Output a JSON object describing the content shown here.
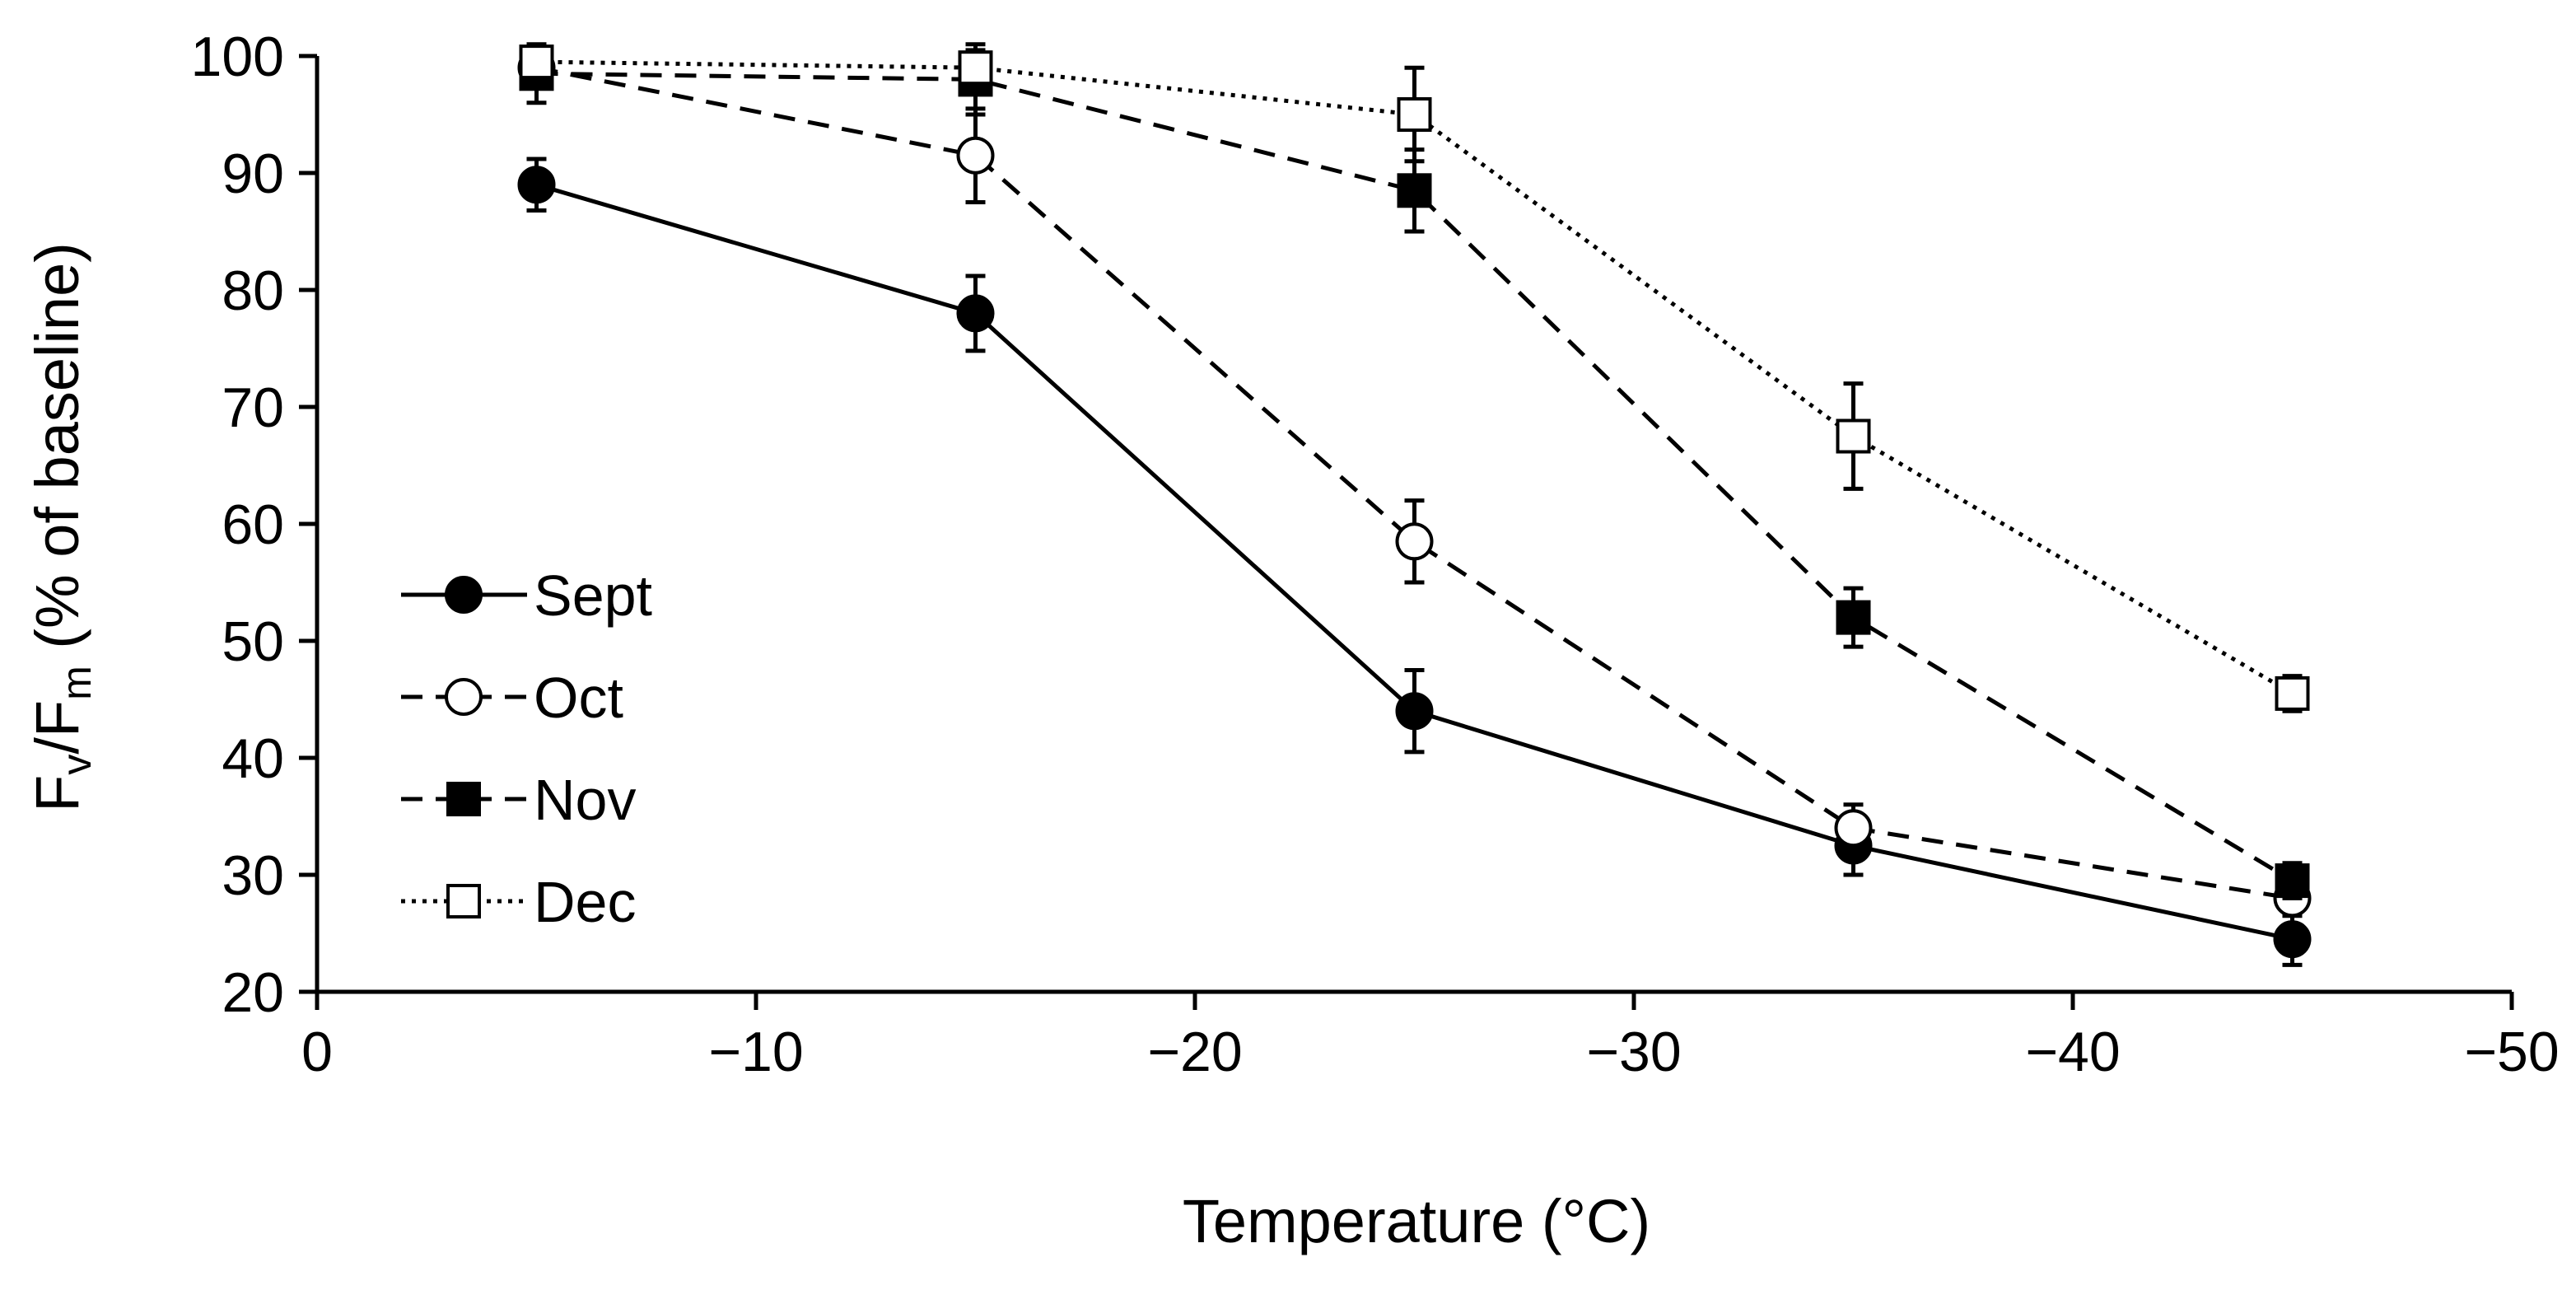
{
  "chart_data": {
    "type": "line",
    "xlabel": "Temperature (°C)",
    "ylabel": {
      "parts": [
        {
          "text": "F"
        },
        {
          "text": "v",
          "sub": true
        },
        {
          "text": "/F"
        },
        {
          "text": "m",
          "sub": true
        },
        {
          "text": " (% of baseline)"
        }
      ]
    },
    "xlim": [
      0,
      -50
    ],
    "ylim": [
      20,
      100
    ],
    "x_ticks": [
      0,
      -10,
      -20,
      -30,
      -40,
      -50
    ],
    "x_tick_labels": [
      "0",
      "−10",
      "−20",
      "−30",
      "−40",
      "−50"
    ],
    "y_ticks": [
      20,
      30,
      40,
      50,
      60,
      70,
      80,
      90,
      100
    ],
    "y_tick_labels": [
      "20",
      "30",
      "40",
      "50",
      "60",
      "70",
      "80",
      "90",
      "100"
    ],
    "grid": false,
    "legend_position": "left-center",
    "x": [
      -5,
      -15,
      -25,
      -35,
      -45
    ],
    "series": [
      {
        "name": "Sept",
        "values": [
          89,
          78,
          44,
          32.5,
          24.5
        ],
        "errors": [
          2.2,
          3.2,
          3.5,
          2.5,
          2.2
        ],
        "marker": "filled-circle",
        "line": "solid"
      },
      {
        "name": "Oct",
        "values": [
          99,
          91.5,
          58.5,
          34,
          28
        ],
        "errors": [
          1.5,
          4.0,
          3.5,
          2.0,
          1.5
        ],
        "marker": "open-circle",
        "line": "dashed"
      },
      {
        "name": "Nov",
        "values": [
          98.5,
          98,
          88.5,
          52,
          29.5
        ],
        "errors": [
          2.5,
          3.0,
          3.5,
          2.5,
          1.5
        ],
        "marker": "filled-square",
        "line": "dashed"
      },
      {
        "name": "Dec",
        "values": [
          99.5,
          99,
          95,
          67.5,
          45.5
        ],
        "errors": [
          1.0,
          1.5,
          4.0,
          4.5,
          1.5
        ],
        "marker": "open-square",
        "line": "dotted"
      }
    ]
  }
}
